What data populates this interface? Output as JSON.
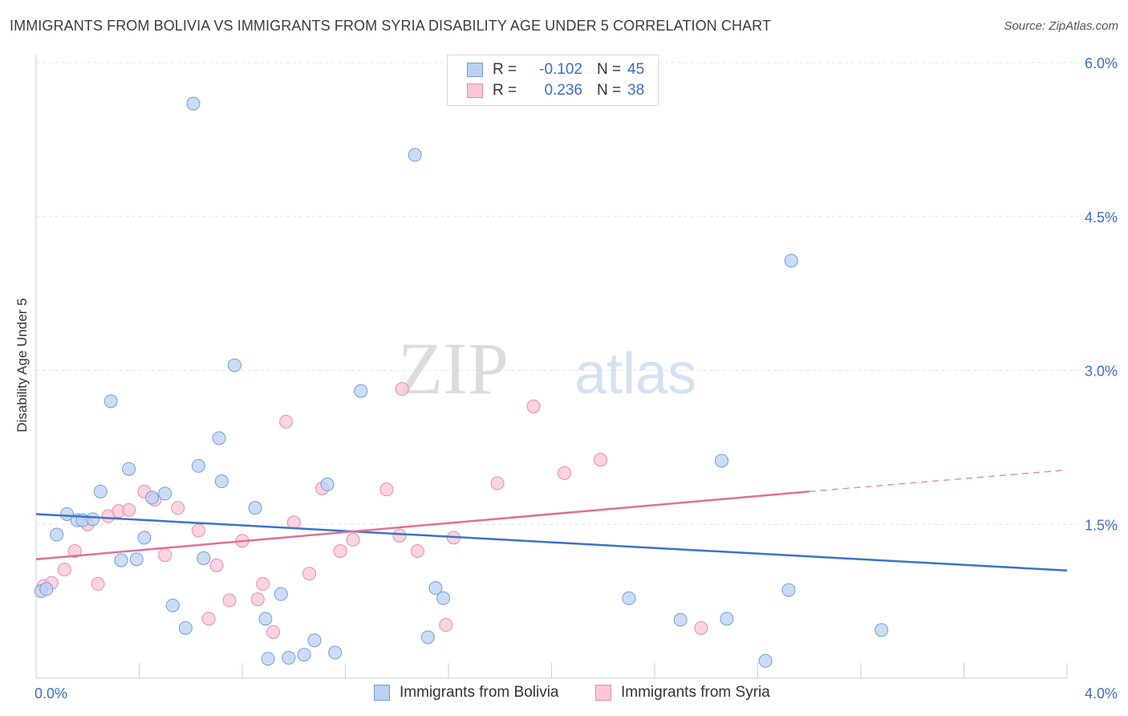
{
  "title": "IMMIGRANTS FROM BOLIVIA VS IMMIGRANTS FROM SYRIA DISABILITY AGE UNDER 5 CORRELATION CHART",
  "source": "Source: ZipAtlas.com",
  "watermark": {
    "zip": "ZIP",
    "atlas": "atlas"
  },
  "legend_top": [
    {
      "r_label": "R =",
      "r_value": "-0.102",
      "n_label": "N =",
      "n_value": "45"
    },
    {
      "r_label": "R =",
      "r_value": "0.236",
      "n_label": "N =",
      "n_value": "38"
    }
  ],
  "colors": {
    "bolivia_fill": "#b9d1f2",
    "bolivia_stroke": "#6f9ddb",
    "bolivia_line": "#3a73cc",
    "syria_fill": "#f8c6d6",
    "syria_stroke": "#e88aa8",
    "syria_line": "#e0709a",
    "accent_text": "#3a6fc4"
  },
  "chart_data": {
    "type": "scatter",
    "title": "IMMIGRANTS FROM BOLIVIA VS IMMIGRANTS FROM SYRIA DISABILITY AGE UNDER 5 CORRELATION CHART",
    "xlabel": "",
    "ylabel": "Disability Age Under 5",
    "xlim": [
      0,
      4.0
    ],
    "ylim": [
      0,
      6.0
    ],
    "x_tick_labels": [
      "0.0%",
      "4.0%"
    ],
    "y_ticks": [
      1.5,
      3.0,
      4.5,
      6.0
    ],
    "y_tick_labels": [
      "1.5%",
      "3.0%",
      "4.5%",
      "6.0%"
    ],
    "grid": true,
    "legend_position": "bottom",
    "series": [
      {
        "name": "Immigrants from Bolivia",
        "r": -0.102,
        "n": 45,
        "trend": {
          "x": [
            0.0,
            4.0
          ],
          "y": [
            1.6,
            1.05
          ]
        },
        "points": [
          [
            0.02,
            0.85
          ],
          [
            0.04,
            0.87
          ],
          [
            0.08,
            1.4
          ],
          [
            0.12,
            1.6
          ],
          [
            0.16,
            1.54
          ],
          [
            0.18,
            1.54
          ],
          [
            0.22,
            1.55
          ],
          [
            0.25,
            1.82
          ],
          [
            0.29,
            2.7
          ],
          [
            0.33,
            1.15
          ],
          [
            0.36,
            2.04
          ],
          [
            0.39,
            1.16
          ],
          [
            0.42,
            1.37
          ],
          [
            0.45,
            1.76
          ],
          [
            0.5,
            1.8
          ],
          [
            0.53,
            0.71
          ],
          [
            0.58,
            0.49
          ],
          [
            0.61,
            5.6
          ],
          [
            0.63,
            2.07
          ],
          [
            0.65,
            1.17
          ],
          [
            0.71,
            2.34
          ],
          [
            0.72,
            1.92
          ],
          [
            0.77,
            3.05
          ],
          [
            0.85,
            1.66
          ],
          [
            0.89,
            0.58
          ],
          [
            0.9,
            0.19
          ],
          [
            0.95,
            0.82
          ],
          [
            0.98,
            0.2
          ],
          [
            1.04,
            0.23
          ],
          [
            1.08,
            0.37
          ],
          [
            1.13,
            1.89
          ],
          [
            1.16,
            0.25
          ],
          [
            1.26,
            2.8
          ],
          [
            1.47,
            5.1
          ],
          [
            1.52,
            0.4
          ],
          [
            1.55,
            0.88
          ],
          [
            1.58,
            0.78
          ],
          [
            2.3,
            0.78
          ],
          [
            2.5,
            0.57
          ],
          [
            2.66,
            2.12
          ],
          [
            2.68,
            0.58
          ],
          [
            2.83,
            0.17
          ],
          [
            2.92,
            0.86
          ],
          [
            2.93,
            4.07
          ],
          [
            3.28,
            0.47
          ]
        ]
      },
      {
        "name": "Immigrants from Syria",
        "r": 0.236,
        "n": 38,
        "trend": {
          "x": [
            0.0,
            3.0
          ],
          "y": [
            1.16,
            1.82
          ],
          "dashed_to": [
            4.0,
            2.03
          ]
        },
        "points": [
          [
            0.03,
            0.9
          ],
          [
            0.06,
            0.93
          ],
          [
            0.11,
            1.06
          ],
          [
            0.15,
            1.24
          ],
          [
            0.2,
            1.5
          ],
          [
            0.24,
            0.92
          ],
          [
            0.28,
            1.58
          ],
          [
            0.32,
            1.63
          ],
          [
            0.36,
            1.64
          ],
          [
            0.42,
            1.82
          ],
          [
            0.46,
            1.74
          ],
          [
            0.5,
            1.2
          ],
          [
            0.55,
            1.66
          ],
          [
            0.63,
            1.44
          ],
          [
            0.67,
            0.58
          ],
          [
            0.7,
            1.1
          ],
          [
            0.75,
            0.76
          ],
          [
            0.8,
            1.34
          ],
          [
            0.86,
            0.77
          ],
          [
            0.88,
            0.92
          ],
          [
            0.92,
            0.45
          ],
          [
            0.97,
            2.5
          ],
          [
            1.0,
            1.52
          ],
          [
            1.06,
            1.02
          ],
          [
            1.11,
            1.85
          ],
          [
            1.18,
            1.24
          ],
          [
            1.23,
            1.35
          ],
          [
            1.36,
            1.84
          ],
          [
            1.41,
            1.39
          ],
          [
            1.42,
            2.82
          ],
          [
            1.48,
            1.24
          ],
          [
            1.59,
            0.52
          ],
          [
            1.62,
            1.37
          ],
          [
            1.79,
            1.9
          ],
          [
            1.93,
            2.65
          ],
          [
            2.05,
            2.0
          ],
          [
            2.19,
            2.13
          ],
          [
            2.58,
            0.49
          ]
        ]
      }
    ]
  },
  "legend_bottom": [
    "Immigrants from Bolivia",
    "Immigrants from Syria"
  ]
}
